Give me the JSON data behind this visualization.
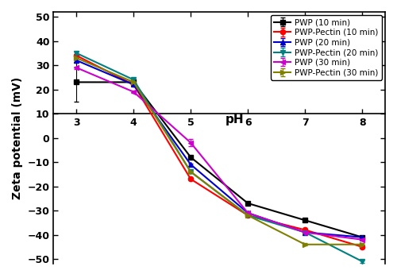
{
  "pH": [
    3,
    4,
    5,
    6,
    7,
    8
  ],
  "series": [
    {
      "label": "PWP (10 min)",
      "color": "#000000",
      "marker": "s",
      "values": [
        23,
        23,
        -8,
        -27,
        -34,
        -41
      ],
      "yerr": [
        8,
        0.5,
        0.5,
        0.5,
        0.5,
        0.5
      ]
    },
    {
      "label": "PWP-Pectin (10 min)",
      "color": "#ff0000",
      "marker": "o",
      "values": [
        34,
        22,
        -17,
        -32,
        -38,
        -45
      ],
      "yerr": [
        0.5,
        0.5,
        0.5,
        0.5,
        0.5,
        0.5
      ]
    },
    {
      "label": "PWP (20 min)",
      "color": "#0000cc",
      "marker": "^",
      "values": [
        32,
        22,
        -11,
        -31,
        -39,
        -41
      ],
      "yerr": [
        0.5,
        0.5,
        0.5,
        0.5,
        0.5,
        0.5
      ]
    },
    {
      "label": "PWP-Pectin (20 min)",
      "color": "#008080",
      "marker": "v",
      "values": [
        35,
        24,
        -14,
        -32,
        -39,
        -51
      ],
      "yerr": [
        0.5,
        0.5,
        0.5,
        0.5,
        0.5,
        0.5
      ]
    },
    {
      "label": "PWP (30 min)",
      "color": "#cc00cc",
      "marker": "<",
      "values": [
        29,
        19,
        -2,
        -31,
        -39,
        -42
      ],
      "yerr": [
        0.5,
        0.5,
        1.5,
        0.5,
        0.5,
        0.5
      ]
    },
    {
      "label": "PWP-Pectin (30 min)",
      "color": "#808000",
      "marker": ">",
      "values": [
        33,
        23,
        -14,
        -32,
        -44,
        -44
      ],
      "yerr": [
        0.5,
        0.5,
        0.5,
        0.5,
        0.5,
        0.5
      ]
    }
  ],
  "xlabel": "pH",
  "ylabel": "Zeta potential (mV)",
  "xlim": [
    2.6,
    8.4
  ],
  "ylim": [
    -52,
    52
  ],
  "yticks": [
    -50,
    -40,
    -30,
    -20,
    -10,
    0,
    10,
    20,
    30,
    40,
    50
  ],
  "xticks": [
    3,
    4,
    5,
    6,
    7,
    8
  ],
  "figsize": [
    5.0,
    3.5
  ],
  "dpi": 100,
  "spine_y": 10
}
